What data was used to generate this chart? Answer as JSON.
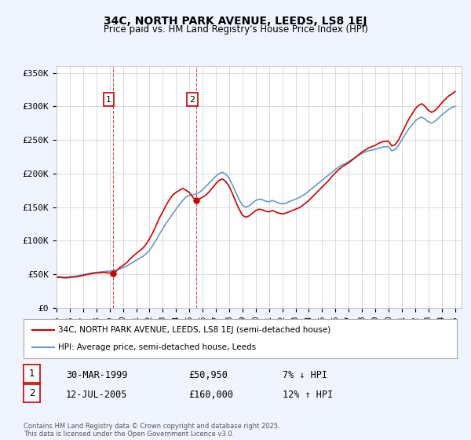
{
  "title1": "34C, NORTH PARK AVENUE, LEEDS, LS8 1EJ",
  "title2": "Price paid vs. HM Land Registry's House Price Index (HPI)",
  "ylabel": "",
  "ylim": [
    0,
    360000
  ],
  "yticks": [
    0,
    50000,
    100000,
    150000,
    200000,
    250000,
    300000,
    350000
  ],
  "ytick_labels": [
    "£0",
    "£50K",
    "£100K",
    "£150K",
    "£200K",
    "£250K",
    "£300K",
    "£350K"
  ],
  "xlim_start": 1995.0,
  "xlim_end": 2025.5,
  "background_color": "#f0f4ff",
  "plot_bg_color": "#ffffff",
  "red_color": "#cc0000",
  "blue_color": "#6699cc",
  "marker1_date": 1999.24,
  "marker1_price": 50950,
  "marker2_date": 2005.53,
  "marker2_price": 160000,
  "legend_label_red": "34C, NORTH PARK AVENUE, LEEDS, LS8 1EJ (semi-detached house)",
  "legend_label_blue": "HPI: Average price, semi-detached house, Leeds",
  "annotation1_label": "1",
  "annotation2_label": "2",
  "table_row1": [
    "1",
    "30-MAR-1999",
    "£50,950",
    "7% ↓ HPI"
  ],
  "table_row2": [
    "2",
    "12-JUL-2005",
    "£160,000",
    "12% ↑ HPI"
  ],
  "footer": "Contains HM Land Registry data © Crown copyright and database right 2025.\nThis data is licensed under the Open Government Licence v3.0.",
  "hpi_data": {
    "years": [
      1995.0,
      1995.25,
      1995.5,
      1995.75,
      1996.0,
      1996.25,
      1996.5,
      1996.75,
      1997.0,
      1997.25,
      1997.5,
      1997.75,
      1998.0,
      1998.25,
      1998.5,
      1998.75,
      1999.0,
      1999.25,
      1999.5,
      1999.75,
      2000.0,
      2000.25,
      2000.5,
      2000.75,
      2001.0,
      2001.25,
      2001.5,
      2001.75,
      2002.0,
      2002.25,
      2002.5,
      2002.75,
      2003.0,
      2003.25,
      2003.5,
      2003.75,
      2004.0,
      2004.25,
      2004.5,
      2004.75,
      2005.0,
      2005.25,
      2005.5,
      2005.75,
      2006.0,
      2006.25,
      2006.5,
      2006.75,
      2007.0,
      2007.25,
      2007.5,
      2007.75,
      2008.0,
      2008.25,
      2008.5,
      2008.75,
      2009.0,
      2009.25,
      2009.5,
      2009.75,
      2010.0,
      2010.25,
      2010.5,
      2010.75,
      2011.0,
      2011.25,
      2011.5,
      2011.75,
      2012.0,
      2012.25,
      2012.5,
      2012.75,
      2013.0,
      2013.25,
      2013.5,
      2013.75,
      2014.0,
      2014.25,
      2014.5,
      2014.75,
      2015.0,
      2015.25,
      2015.5,
      2015.75,
      2016.0,
      2016.25,
      2016.5,
      2016.75,
      2017.0,
      2017.25,
      2017.5,
      2017.75,
      2018.0,
      2018.25,
      2018.5,
      2018.75,
      2019.0,
      2019.25,
      2019.5,
      2019.75,
      2020.0,
      2020.25,
      2020.5,
      2020.75,
      2021.0,
      2021.25,
      2021.5,
      2021.75,
      2022.0,
      2022.25,
      2022.5,
      2022.75,
      2023.0,
      2023.25,
      2023.5,
      2023.75,
      2024.0,
      2024.25,
      2024.5,
      2024.75,
      2025.0
    ],
    "values": [
      47000,
      46500,
      46000,
      45800,
      46500,
      47000,
      47500,
      48500,
      49500,
      50500,
      51500,
      52500,
      53000,
      53500,
      54000,
      54500,
      55000,
      55500,
      56500,
      58000,
      60000,
      62000,
      65000,
      68000,
      71000,
      74000,
      77000,
      81000,
      86000,
      93000,
      101000,
      110000,
      118000,
      126000,
      133000,
      140000,
      147000,
      154000,
      160000,
      165000,
      168000,
      168000,
      170000,
      172000,
      176000,
      181000,
      186000,
      191000,
      196000,
      200000,
      202000,
      199000,
      193000,
      183000,
      172000,
      161000,
      153000,
      150000,
      152000,
      156000,
      160000,
      162000,
      161000,
      159000,
      158000,
      160000,
      158000,
      156000,
      155000,
      156000,
      158000,
      160000,
      162000,
      164000,
      167000,
      170000,
      174000,
      178000,
      182000,
      186000,
      190000,
      194000,
      198000,
      202000,
      206000,
      210000,
      213000,
      215000,
      218000,
      221000,
      224000,
      227000,
      230000,
      232000,
      234000,
      235000,
      236000,
      238000,
      239000,
      240000,
      240000,
      234000,
      236000,
      242000,
      250000,
      258000,
      266000,
      272000,
      278000,
      282000,
      284000,
      281000,
      277000,
      275000,
      278000,
      282000,
      287000,
      291000,
      295000,
      298000,
      300000
    ]
  },
  "price_data": {
    "years": [
      1995.0,
      1995.25,
      1995.5,
      1995.75,
      1996.0,
      1996.25,
      1996.5,
      1996.75,
      1997.0,
      1997.25,
      1997.5,
      1997.75,
      1998.0,
      1998.25,
      1998.5,
      1998.75,
      1999.0,
      1999.25,
      1999.5,
      1999.75,
      2000.0,
      2000.25,
      2000.5,
      2000.75,
      2001.0,
      2001.25,
      2001.5,
      2001.75,
      2002.0,
      2002.25,
      2002.5,
      2002.75,
      2003.0,
      2003.25,
      2003.5,
      2003.75,
      2004.0,
      2004.25,
      2004.5,
      2004.75,
      2005.0,
      2005.25,
      2005.5,
      2005.75,
      2006.0,
      2006.25,
      2006.5,
      2006.75,
      2007.0,
      2007.25,
      2007.5,
      2007.75,
      2008.0,
      2008.25,
      2008.5,
      2008.75,
      2009.0,
      2009.25,
      2009.5,
      2009.75,
      2010.0,
      2010.25,
      2010.5,
      2010.75,
      2011.0,
      2011.25,
      2011.5,
      2011.75,
      2012.0,
      2012.25,
      2012.5,
      2012.75,
      2013.0,
      2013.25,
      2013.5,
      2013.75,
      2014.0,
      2014.25,
      2014.5,
      2014.75,
      2015.0,
      2015.25,
      2015.5,
      2015.75,
      2016.0,
      2016.25,
      2016.5,
      2016.75,
      2017.0,
      2017.25,
      2017.5,
      2017.75,
      2018.0,
      2018.25,
      2018.5,
      2018.75,
      2019.0,
      2019.25,
      2019.5,
      2019.75,
      2020.0,
      2020.25,
      2020.5,
      2020.75,
      2021.0,
      2021.25,
      2021.5,
      2021.75,
      2022.0,
      2022.25,
      2022.5,
      2022.75,
      2023.0,
      2023.25,
      2023.5,
      2023.75,
      2024.0,
      2024.25,
      2024.5,
      2024.75,
      2025.0
    ],
    "values": [
      46000,
      45500,
      45000,
      44800,
      45500,
      46000,
      46500,
      47500,
      48500,
      49500,
      50500,
      51500,
      52000,
      52500,
      53000,
      52500,
      52000,
      50950,
      55000,
      60000,
      63000,
      67000,
      72000,
      77000,
      81000,
      85000,
      89000,
      95000,
      103000,
      112000,
      123000,
      134000,
      143000,
      153000,
      161000,
      168000,
      172000,
      175000,
      178000,
      175000,
      172000,
      165000,
      160000,
      162000,
      165000,
      168000,
      173000,
      179000,
      185000,
      190000,
      192000,
      188000,
      181000,
      170000,
      158000,
      147000,
      138000,
      135000,
      137000,
      141000,
      145000,
      147000,
      146000,
      144000,
      143000,
      145000,
      143000,
      141000,
      140000,
      141000,
      143000,
      145000,
      147000,
      149000,
      152000,
      156000,
      160000,
      165000,
      170000,
      175000,
      180000,
      185000,
      190000,
      196000,
      201000,
      206000,
      210000,
      213000,
      216000,
      220000,
      224000,
      228000,
      232000,
      235000,
      238000,
      240000,
      242000,
      245000,
      247000,
      248000,
      248000,
      241000,
      243000,
      250000,
      260000,
      270000,
      280000,
      288000,
      296000,
      301000,
      304000,
      300000,
      294000,
      291000,
      294000,
      299000,
      305000,
      310000,
      315000,
      318000,
      322000
    ]
  }
}
